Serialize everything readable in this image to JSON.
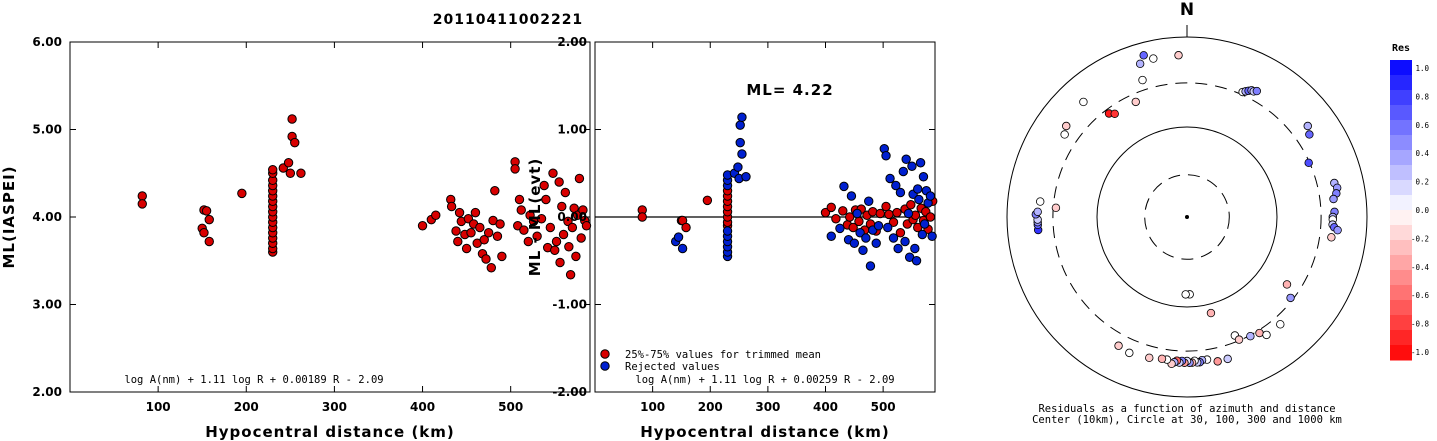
{
  "title": "20110411002221",
  "chart_data": [
    {
      "type": "scatter",
      "name": "ml-vs-distance",
      "xlabel": "Hypocentral distance (km)",
      "ylabel": "ML(IASPEI)",
      "xlim": [
        0,
        590
      ],
      "ylim": [
        2.0,
        6.0
      ],
      "xticks": [
        "100",
        "200",
        "300",
        "400",
        "500"
      ],
      "yticks": [
        "2.00",
        "3.00",
        "4.00",
        "5.00",
        "6.00"
      ],
      "formula": "log A(nm) + 1.11 log R + 0.00189 R - 2.09",
      "points": [
        [
          82,
          4.24
        ],
        [
          82,
          4.15
        ],
        [
          152,
          4.08
        ],
        [
          155,
          4.07
        ],
        [
          158,
          3.97
        ],
        [
          150,
          3.87
        ],
        [
          152,
          3.82
        ],
        [
          158,
          3.72
        ],
        [
          195,
          4.27
        ],
        [
          230,
          3.6
        ],
        [
          230,
          3.64
        ],
        [
          230,
          3.7
        ],
        [
          230,
          3.76
        ],
        [
          230,
          3.82
        ],
        [
          230,
          3.88
        ],
        [
          230,
          3.94
        ],
        [
          230,
          4.0
        ],
        [
          230,
          4.06
        ],
        [
          230,
          4.12
        ],
        [
          230,
          4.18
        ],
        [
          230,
          4.24
        ],
        [
          230,
          4.3
        ],
        [
          230,
          4.36
        ],
        [
          230,
          4.42
        ],
        [
          230,
          4.5
        ],
        [
          230,
          4.54
        ],
        [
          242,
          4.56
        ],
        [
          248,
          4.62
        ],
        [
          250,
          4.5
        ],
        [
          252,
          4.92
        ],
        [
          252,
          5.12
        ],
        [
          255,
          4.85
        ],
        [
          262,
          4.5
        ],
        [
          400,
          3.9
        ],
        [
          410,
          3.97
        ],
        [
          415,
          4.02
        ],
        [
          432,
          4.2
        ],
        [
          433,
          4.12
        ],
        [
          438,
          3.84
        ],
        [
          440,
          3.72
        ],
        [
          442,
          4.05
        ],
        [
          444,
          3.95
        ],
        [
          448,
          3.8
        ],
        [
          450,
          3.64
        ],
        [
          452,
          3.98
        ],
        [
          455,
          3.82
        ],
        [
          458,
          3.92
        ],
        [
          460,
          4.05
        ],
        [
          462,
          3.7
        ],
        [
          465,
          3.88
        ],
        [
          468,
          3.58
        ],
        [
          470,
          3.74
        ],
        [
          472,
          3.52
        ],
        [
          475,
          3.82
        ],
        [
          478,
          3.42
        ],
        [
          480,
          3.96
        ],
        [
          482,
          4.3
        ],
        [
          485,
          3.78
        ],
        [
          488,
          3.92
        ],
        [
          490,
          3.55
        ],
        [
          505,
          4.63
        ],
        [
          505,
          4.55
        ],
        [
          508,
          3.9
        ],
        [
          510,
          4.2
        ],
        [
          512,
          4.08
        ],
        [
          515,
          3.85
        ],
        [
          520,
          3.72
        ],
        [
          522,
          4.02
        ],
        [
          526,
          3.95
        ],
        [
          530,
          3.78
        ],
        [
          535,
          3.98
        ],
        [
          538,
          4.36
        ],
        [
          540,
          4.2
        ],
        [
          542,
          3.65
        ],
        [
          545,
          3.88
        ],
        [
          548,
          4.5
        ],
        [
          550,
          3.62
        ],
        [
          552,
          3.72
        ],
        [
          555,
          4.4
        ],
        [
          556,
          3.48
        ],
        [
          558,
          4.12
        ],
        [
          560,
          3.8
        ],
        [
          562,
          4.28
        ],
        [
          565,
          3.95
        ],
        [
          566,
          3.66
        ],
        [
          568,
          3.34
        ],
        [
          570,
          3.88
        ],
        [
          572,
          4.1
        ],
        [
          574,
          3.55
        ],
        [
          576,
          4.02
        ],
        [
          578,
          4.44
        ],
        [
          580,
          3.76
        ],
        [
          582,
          4.08
        ],
        [
          584,
          3.96
        ],
        [
          586,
          3.9
        ]
      ],
      "marker_color": "#d80000"
    },
    {
      "type": "scatter",
      "name": "residual-vs-distance",
      "xlabel": "Hypocentral distance (km)",
      "ylabel": "ML - ML(evt)",
      "xlim": [
        0,
        590
      ],
      "ylim": [
        -2.0,
        2.0
      ],
      "xticks": [
        "100",
        "200",
        "300",
        "400",
        "500"
      ],
      "yticks": [
        "-2.00",
        "-1.00",
        "0.00",
        "1.00",
        "2.00"
      ],
      "annotation": "ML= 4.22",
      "formula": "log A(nm) + 1.11 log R + 0.00259 R - 2.09",
      "legend": [
        "25%-75% values for trimmed mean",
        "Rejected values"
      ],
      "series_colors": [
        "#d80000",
        "#0020d0"
      ],
      "points_kept": [
        [
          82,
          0.08
        ],
        [
          82,
          0.0
        ],
        [
          150,
          -0.04
        ],
        [
          152,
          -0.04
        ],
        [
          158,
          -0.12
        ],
        [
          195,
          0.19
        ],
        [
          230,
          -0.1
        ],
        [
          230,
          -0.06
        ],
        [
          230,
          0.0
        ],
        [
          230,
          0.06
        ],
        [
          230,
          0.12
        ],
        [
          230,
          0.18
        ],
        [
          230,
          0.24
        ],
        [
          230,
          0.3
        ],
        [
          400,
          0.05
        ],
        [
          410,
          0.11
        ],
        [
          418,
          -0.02
        ],
        [
          430,
          0.07
        ],
        [
          438,
          -0.09
        ],
        [
          442,
          0.0
        ],
        [
          448,
          -0.12
        ],
        [
          452,
          0.08
        ],
        [
          458,
          -0.05
        ],
        [
          462,
          0.09
        ],
        [
          468,
          -0.15
        ],
        [
          472,
          0.02
        ],
        [
          478,
          -0.08
        ],
        [
          482,
          0.06
        ],
        [
          488,
          -0.16
        ],
        [
          495,
          0.04
        ],
        [
          505,
          0.12
        ],
        [
          510,
          0.03
        ],
        [
          518,
          -0.06
        ],
        [
          524,
          0.05
        ],
        [
          530,
          -0.18
        ],
        [
          538,
          0.09
        ],
        [
          542,
          -0.08
        ],
        [
          548,
          0.14
        ],
        [
          552,
          -0.03
        ],
        [
          556,
          0.02
        ],
        [
          560,
          -0.12
        ],
        [
          566,
          0.1
        ],
        [
          570,
          -0.04
        ],
        [
          574,
          0.06
        ],
        [
          578,
          -0.14
        ],
        [
          582,
          0.0
        ],
        [
          586,
          0.18
        ]
      ],
      "points_rejected": [
        [
          140,
          -0.28
        ],
        [
          145,
          -0.23
        ],
        [
          152,
          -0.36
        ],
        [
          230,
          -0.45
        ],
        [
          230,
          -0.4
        ],
        [
          230,
          -0.34
        ],
        [
          230,
          -0.28
        ],
        [
          230,
          -0.22
        ],
        [
          230,
          -0.16
        ],
        [
          230,
          0.36
        ],
        [
          230,
          0.42
        ],
        [
          230,
          0.48
        ],
        [
          242,
          0.5
        ],
        [
          248,
          0.57
        ],
        [
          250,
          0.44
        ],
        [
          252,
          0.85
        ],
        [
          252,
          1.05
        ],
        [
          255,
          1.14
        ],
        [
          255,
          0.72
        ],
        [
          262,
          0.46
        ],
        [
          410,
          -0.22
        ],
        [
          425,
          -0.13
        ],
        [
          432,
          0.35
        ],
        [
          440,
          -0.26
        ],
        [
          445,
          0.24
        ],
        [
          450,
          -0.3
        ],
        [
          455,
          0.04
        ],
        [
          460,
          -0.18
        ],
        [
          465,
          -0.38
        ],
        [
          470,
          -0.24
        ],
        [
          475,
          0.18
        ],
        [
          478,
          -0.56
        ],
        [
          482,
          -0.15
        ],
        [
          488,
          -0.3
        ],
        [
          492,
          -0.1
        ],
        [
          502,
          0.78
        ],
        [
          505,
          0.7
        ],
        [
          508,
          -0.12
        ],
        [
          512,
          0.44
        ],
        [
          518,
          -0.24
        ],
        [
          522,
          0.36
        ],
        [
          526,
          -0.36
        ],
        [
          530,
          0.28
        ],
        [
          535,
          0.52
        ],
        [
          538,
          -0.28
        ],
        [
          540,
          0.66
        ],
        [
          544,
          0.04
        ],
        [
          546,
          -0.46
        ],
        [
          550,
          0.58
        ],
        [
          552,
          0.26
        ],
        [
          555,
          -0.36
        ],
        [
          558,
          -0.5
        ],
        [
          560,
          0.32
        ],
        [
          562,
          0.2
        ],
        [
          565,
          0.62
        ],
        [
          568,
          -0.2
        ],
        [
          570,
          0.46
        ],
        [
          572,
          -0.08
        ],
        [
          575,
          0.3
        ],
        [
          578,
          0.16
        ],
        [
          582,
          0.24
        ],
        [
          585,
          -0.22
        ]
      ]
    },
    {
      "type": "scatter",
      "name": "residual-azimuth-polar",
      "north_label": "N",
      "caption_line1": "Residuals as a function of azimuth and distance",
      "caption_line2": "Center (10km), Circle at 30, 100, 300 and 1000 km",
      "colorbar_title": "Res",
      "colorbar_labels": [
        "1.0",
        "0.8",
        "0.6",
        "0.4",
        "0.2",
        "0.0",
        "-0.2",
        "-0.4",
        "-0.6",
        "-0.8",
        "-1.0"
      ],
      "points_az_r_res": [
        [
          345,
          0.93,
          0.6
        ],
        [
          343,
          0.89,
          0.3
        ],
        [
          348,
          0.9,
          0.0
        ],
        [
          357,
          0.9,
          -0.2
        ],
        [
          318,
          0.86,
          0.0
        ],
        [
          307,
          0.84,
          -0.2
        ],
        [
          304,
          0.82,
          0.0
        ],
        [
          342,
          0.8,
          0.0
        ],
        [
          323,
          0.72,
          -0.9
        ],
        [
          325,
          0.7,
          -0.8
        ],
        [
          336,
          0.7,
          -0.2
        ],
        [
          24,
          0.76,
          0.0
        ],
        [
          25,
          0.77,
          0.3
        ],
        [
          26,
          0.78,
          0.6
        ],
        [
          27,
          0.79,
          0.4
        ],
        [
          28,
          0.79,
          0.2
        ],
        [
          29,
          0.8,
          0.5
        ],
        [
          53,
          0.84,
          0.3
        ],
        [
          56,
          0.82,
          0.6
        ],
        [
          66,
          0.74,
          0.7
        ],
        [
          77,
          0.84,
          0.3
        ],
        [
          79,
          0.85,
          0.4
        ],
        [
          81,
          0.84,
          0.5
        ],
        [
          83,
          0.82,
          0.4
        ],
        [
          88,
          0.82,
          0.5
        ],
        [
          90,
          0.81,
          0.3
        ],
        [
          91,
          0.81,
          0.0
        ],
        [
          93,
          0.81,
          0.2
        ],
        [
          94,
          0.82,
          0.6
        ],
        [
          95,
          0.84,
          0.4
        ],
        [
          98,
          0.81,
          -0.2
        ],
        [
          265,
          0.83,
          0.8
        ],
        [
          267,
          0.83,
          0.6
        ],
        [
          268,
          0.83,
          0.4
        ],
        [
          269,
          0.83,
          0.2
        ],
        [
          271,
          0.84,
          0.5
        ],
        [
          272,
          0.83,
          0.3
        ],
        [
          276,
          0.82,
          0.0
        ],
        [
          274,
          0.73,
          -0.2
        ],
        [
          178,
          0.43,
          0.0
        ],
        [
          181,
          0.43,
          0.0
        ],
        [
          166,
          0.55,
          -0.3
        ],
        [
          158,
          0.71,
          0.0
        ],
        [
          152,
          0.75,
          0.3
        ],
        [
          148,
          0.76,
          -0.3
        ],
        [
          146,
          0.79,
          0.0
        ],
        [
          139,
          0.79,
          0.0
        ],
        [
          128,
          0.73,
          0.4
        ],
        [
          124,
          0.67,
          -0.3
        ],
        [
          157,
          0.74,
          -0.2
        ],
        [
          164,
          0.82,
          0.2
        ],
        [
          168,
          0.82,
          -0.4
        ],
        [
          172,
          0.8,
          0.0
        ],
        [
          174,
          0.8,
          0.3
        ],
        [
          175,
          0.81,
          0.5
        ],
        [
          176,
          0.81,
          0.2
        ],
        [
          177,
          0.8,
          0.0
        ],
        [
          178,
          0.81,
          -0.3
        ],
        [
          179,
          0.81,
          0.4
        ],
        [
          180,
          0.8,
          0.1
        ],
        [
          181,
          0.81,
          -0.4
        ],
        [
          182,
          0.8,
          0.5
        ],
        [
          183,
          0.81,
          0.2
        ],
        [
          184,
          0.8,
          -0.6
        ],
        [
          185,
          0.81,
          0.3
        ],
        [
          186,
          0.82,
          -0.2
        ],
        [
          188,
          0.8,
          0.0
        ],
        [
          190,
          0.8,
          -0.3
        ],
        [
          195,
          0.81,
          -0.2
        ],
        [
          203,
          0.82,
          0.0
        ],
        [
          208,
          0.81,
          -0.2
        ]
      ]
    }
  ]
}
